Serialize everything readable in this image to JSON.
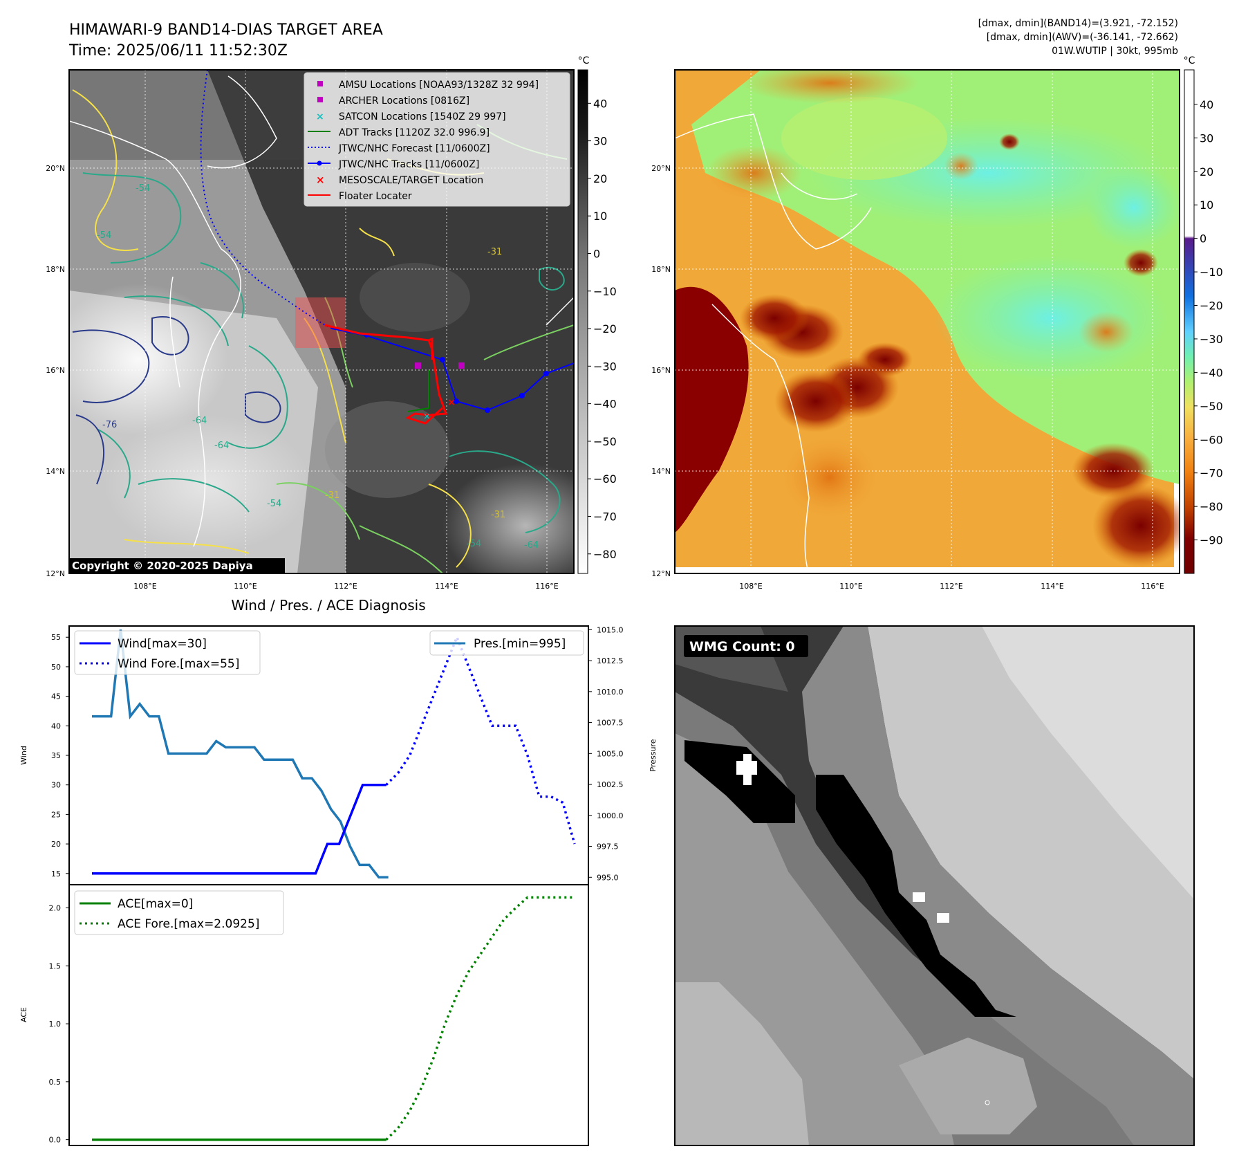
{
  "header": {
    "title_line1": "HIMAWARI-9 BAND14-DIAS TARGET AREA",
    "title_line2": "Time: 2025/06/11 11:52:30Z",
    "right_line1": "[dmax, dmin](BAND14)=(3.921, -72.152)",
    "right_line2": "[dmax, dmin](AWV)=(-36.141, -72.662)",
    "right_line3": "01W.WUTIP | 30kt, 995mb"
  },
  "maps": {
    "lat_labels": [
      "20°N",
      "18°N",
      "16°N",
      "14°N",
      "12°N"
    ],
    "lon_labels": [
      "108°E",
      "110°E",
      "112°E",
      "114°E",
      "116°E"
    ],
    "copyright": "Copyright © 2020-2025 Dapiya",
    "unit": "°C",
    "left_colorbar_ticks": [
      "40",
      "30",
      "20",
      "10",
      "0",
      "−10",
      "−20",
      "−30",
      "−40",
      "−50",
      "−60",
      "−70",
      "−80"
    ],
    "right_colorbar_ticks": [
      "40",
      "30",
      "20",
      "10",
      "0",
      "−10",
      "−20",
      "−30",
      "−40",
      "−50",
      "−60",
      "−70",
      "−80",
      "−90"
    ],
    "contour_labels": [
      "-54",
      "-54",
      "-64",
      "-64",
      "-54",
      "-31",
      "-54",
      "-64",
      "-31",
      "-31",
      "-76"
    ],
    "legend": [
      {
        "label": "AMSU Locations [NOAA93/1328Z 32 994]",
        "symbol": "square",
        "color": "#c000c0"
      },
      {
        "label": "ARCHER Locations [0816Z]",
        "symbol": "square",
        "color": "#c000c0"
      },
      {
        "label": "SATCON Locations [1540Z 29 997]",
        "symbol": "x",
        "color": "#10c0c0"
      },
      {
        "label": "ADT Tracks [1120Z 32.0 996.9]",
        "symbol": "line",
        "color": "#008000"
      },
      {
        "label": "JTWC/NHC Forecast [11/0600Z]",
        "symbol": "dotted",
        "color": "#0000ff"
      },
      {
        "label": "JTWC/NHC Tracks [11/0600Z]",
        "symbol": "line-dot",
        "color": "#0000ff"
      },
      {
        "label": "MESOSCALE/TARGET Location",
        "symbol": "x",
        "color": "#ff0000"
      },
      {
        "label": "Floater Locater",
        "symbol": "line",
        "color": "#ff0000"
      }
    ]
  },
  "wmg": {
    "label": "WMG Count: 0"
  },
  "colors": {
    "wind": "#0000ff",
    "pressure": "#1f77b4",
    "ace": "#008000"
  },
  "chart_data": [
    {
      "type": "line",
      "title": "Wind / Pres. / ACE Diagnosis",
      "ylabel": "Wind",
      "ylabel_right": "Pressure",
      "ylim": [
        13.1,
        56.9
      ],
      "ylim_right": [
        994.4,
        1015.3
      ],
      "yticks": [
        15,
        20,
        25,
        30,
        35,
        40,
        45,
        50,
        55
      ],
      "yticks_right": [
        "995.0",
        "997.5",
        "1000.0",
        "1002.5",
        "1005.0",
        "1007.5",
        "1010.0",
        "1012.5",
        "1015.0"
      ],
      "series": [
        {
          "name": "Wind[max=30]",
          "axis": "left",
          "style": "solid",
          "values": [
            15,
            15,
            15,
            15,
            15,
            15,
            15,
            15,
            15,
            15,
            15,
            15,
            15,
            15,
            15,
            15,
            15,
            15,
            15,
            15,
            20,
            20,
            25,
            30,
            30,
            30
          ]
        },
        {
          "name": "Wind Fore.[max=55]",
          "axis": "left",
          "style": "dotted",
          "x_start": 25,
          "values": [
            30,
            32,
            35,
            40,
            45,
            50,
            55,
            50,
            45,
            40,
            40,
            40,
            35,
            28,
            28,
            27,
            20
          ]
        },
        {
          "name": "Pres.[min=995]",
          "axis": "right",
          "style": "solid",
          "values": [
            1008,
            1008,
            1008,
            1015,
            1008,
            1009,
            1008,
            1008,
            1005,
            1005,
            1005,
            1005,
            1005,
            1006,
            1005.5,
            1005.5,
            1005.5,
            1005.5,
            1004.5,
            1004.5,
            1004.5,
            1004.5,
            1003,
            1003,
            1002,
            1000.5,
            999.5,
            997.5,
            996,
            996,
            995,
            995
          ]
        }
      ]
    },
    {
      "type": "line",
      "ylabel": "ACE",
      "ylim": [
        -0.05,
        2.2
      ],
      "yticks": [
        "0.0",
        "0.5",
        "1.0",
        "1.5",
        "2.0"
      ],
      "series": [
        {
          "name": "ACE[max=0]",
          "style": "solid",
          "values": [
            0,
            0,
            0,
            0,
            0,
            0,
            0,
            0,
            0,
            0,
            0,
            0,
            0,
            0,
            0,
            0,
            0,
            0,
            0,
            0,
            0,
            0,
            0,
            0,
            0,
            0
          ]
        },
        {
          "name": "ACE Fore.[max=2.0925]",
          "style": "dotted",
          "x_start": 25,
          "values": [
            0,
            0.1,
            0.25,
            0.45,
            0.7,
            1.0,
            1.25,
            1.45,
            1.6,
            1.75,
            1.9,
            2.0,
            2.09,
            2.09,
            2.09,
            2.09,
            2.09
          ]
        }
      ]
    }
  ]
}
